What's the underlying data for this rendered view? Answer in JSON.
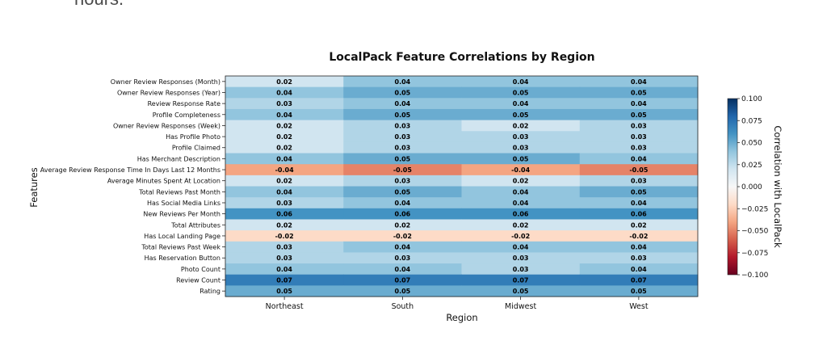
{
  "page": {
    "text": "hours."
  },
  "chart_data": {
    "type": "heatmap",
    "title": "LocalPack Feature Correlations by Region",
    "xlabel": "Region",
    "ylabel": "Features",
    "colorbar_label": "Correlation with LocalPack",
    "colormap": "RdBu",
    "vmin": -0.1,
    "vmax": 0.1,
    "colorbar_ticks": [
      "0.100",
      "0.075",
      "0.050",
      "0.025",
      "0.000",
      "−0.025",
      "−0.050",
      "−0.075",
      "−0.100"
    ],
    "colorbar_tick_values": [
      0.1,
      0.075,
      0.05,
      0.025,
      0.0,
      -0.025,
      -0.05,
      -0.075,
      -0.1
    ],
    "columns": [
      "Northeast",
      "South",
      "Midwest",
      "West"
    ],
    "rows": [
      "Owner Review Responses (Month)",
      "Owner Review Responses (Year)",
      "Review Response Rate",
      "Profile Completeness",
      "Owner Review Responses (Week)",
      "Has Profile Photo",
      "Profile Claimed",
      "Has Merchant Description",
      "Average Review Response Time In Days Last 12 Months",
      "Average Minutes Spent At Location",
      "Total Reviews Past Month",
      "Has Social Media Links",
      "New Reviews Per Month",
      "Total Attributes",
      "Has Local Landing Page",
      "Total Reviews Past Week",
      "Has Reservation Button",
      "Photo Count",
      "Review Count",
      "Rating"
    ],
    "values": [
      [
        0.02,
        0.04,
        0.04,
        0.04
      ],
      [
        0.04,
        0.05,
        0.05,
        0.05
      ],
      [
        0.03,
        0.04,
        0.04,
        0.04
      ],
      [
        0.04,
        0.05,
        0.05,
        0.05
      ],
      [
        0.02,
        0.03,
        0.02,
        0.03
      ],
      [
        0.02,
        0.03,
        0.03,
        0.03
      ],
      [
        0.02,
        0.03,
        0.03,
        0.03
      ],
      [
        0.04,
        0.05,
        0.05,
        0.04
      ],
      [
        -0.04,
        -0.05,
        -0.04,
        -0.05
      ],
      [
        0.02,
        0.03,
        0.02,
        0.03
      ],
      [
        0.04,
        0.05,
        0.04,
        0.05
      ],
      [
        0.03,
        0.04,
        0.04,
        0.04
      ],
      [
        0.06,
        0.06,
        0.06,
        0.06
      ],
      [
        0.02,
        0.02,
        0.02,
        0.02
      ],
      [
        -0.02,
        -0.02,
        -0.02,
        -0.02
      ],
      [
        0.03,
        0.04,
        0.04,
        0.04
      ],
      [
        0.03,
        0.03,
        0.03,
        0.03
      ],
      [
        0.04,
        0.04,
        0.03,
        0.04
      ],
      [
        0.07,
        0.07,
        0.07,
        0.07
      ],
      [
        0.05,
        0.05,
        0.05,
        0.05
      ]
    ],
    "labels": [
      [
        "0.02",
        "0.04",
        "0.04",
        "0.04"
      ],
      [
        "0.04",
        "0.05",
        "0.05",
        "0.05"
      ],
      [
        "0.03",
        "0.04",
        "0.04",
        "0.04"
      ],
      [
        "0.04",
        "0.05",
        "0.05",
        "0.05"
      ],
      [
        "0.02",
        "0.03",
        "0.02",
        "0.03"
      ],
      [
        "0.02",
        "0.03",
        "0.03",
        "0.03"
      ],
      [
        "0.02",
        "0.03",
        "0.03",
        "0.03"
      ],
      [
        "0.04",
        "0.05",
        "0.05",
        "0.04"
      ],
      [
        "-0.04",
        "-0.05",
        "-0.04",
        "-0.05"
      ],
      [
        "0.02",
        "0.03",
        "0.02",
        "0.03"
      ],
      [
        "0.04",
        "0.05",
        "0.04",
        "0.05"
      ],
      [
        "0.03",
        "0.04",
        "0.04",
        "0.04"
      ],
      [
        "0.06",
        "0.06",
        "0.06",
        "0.06"
      ],
      [
        "0.02",
        "0.02",
        "0.02",
        "0.02"
      ],
      [
        "-0.02",
        "-0.02",
        "-0.02",
        "-0.02"
      ],
      [
        "0.03",
        "0.04",
        "0.04",
        "0.04"
      ],
      [
        "0.03",
        "0.03",
        "0.03",
        "0.03"
      ],
      [
        "0.04",
        "0.04",
        "0.03",
        "0.04"
      ],
      [
        "0.07",
        "0.07",
        "0.07",
        "0.07"
      ],
      [
        "0.05",
        "0.05",
        "0.05",
        "0.05"
      ]
    ]
  }
}
